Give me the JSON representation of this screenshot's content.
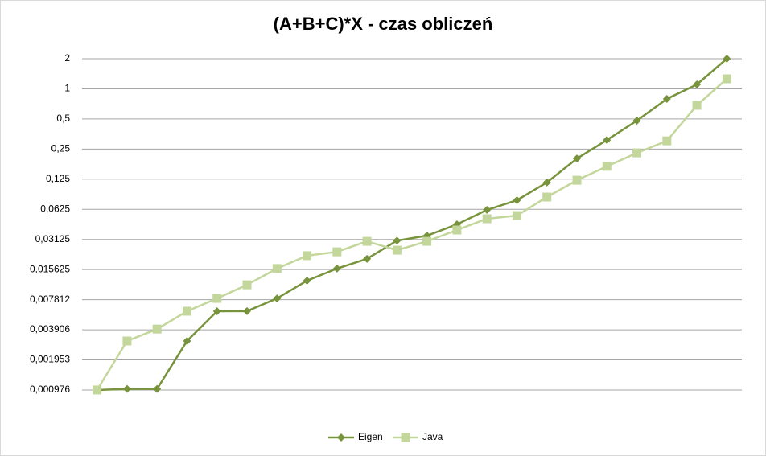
{
  "chart_data": {
    "type": "line",
    "title": "(A+B+C)*X - czas obliczeń",
    "categories": [
      null,
      null,
      null,
      null,
      null,
      null,
      null,
      null,
      null,
      null,
      null,
      null,
      null,
      null,
      null,
      null,
      null,
      null,
      null,
      null,
      null,
      null
    ],
    "series": [
      {
        "name": "Eigen",
        "color": "#77933c",
        "marker": "diamond",
        "values": [
          0.000977,
          0.001,
          0.001,
          0.00302,
          0.00599,
          0.006,
          0.00804,
          0.0121,
          0.016,
          0.02,
          0.0304,
          0.0341,
          0.0442,
          0.0616,
          0.077,
          0.116,
          0.201,
          0.308,
          0.481,
          0.793,
          1.106,
          2
        ]
      },
      {
        "name": "Java",
        "color": "#c3d69b",
        "marker": "square",
        "values": [
          0.000977,
          0.00302,
          0.00397,
          0.00599,
          0.00804,
          0.011,
          0.016,
          0.0215,
          0.0235,
          0.0299,
          0.0244,
          0.0299,
          0.0388,
          0.0503,
          0.0541,
          0.0829,
          0.122,
          0.168,
          0.229,
          0.302,
          0.684,
          1.259
        ]
      }
    ],
    "ylog": true,
    "ylim": [
      0.000976,
      2
    ],
    "yticks": [
      {
        "value": 0.000976,
        "label": "0,000976"
      },
      {
        "value": 0.001953,
        "label": "0,001953"
      },
      {
        "value": 0.003906,
        "label": "0,003906"
      },
      {
        "value": 0.007812,
        "label": "0,007812"
      },
      {
        "value": 0.015625,
        "label": "0,015625"
      },
      {
        "value": 0.03125,
        "label": "0,03125"
      },
      {
        "value": 0.0625,
        "label": "0,0625"
      },
      {
        "value": 0.125,
        "label": "0,125"
      },
      {
        "value": 0.25,
        "label": "0,25"
      },
      {
        "value": 0.5,
        "label": "0,5"
      },
      1,
      2
    ],
    "grid": true,
    "legend": "bottom"
  }
}
